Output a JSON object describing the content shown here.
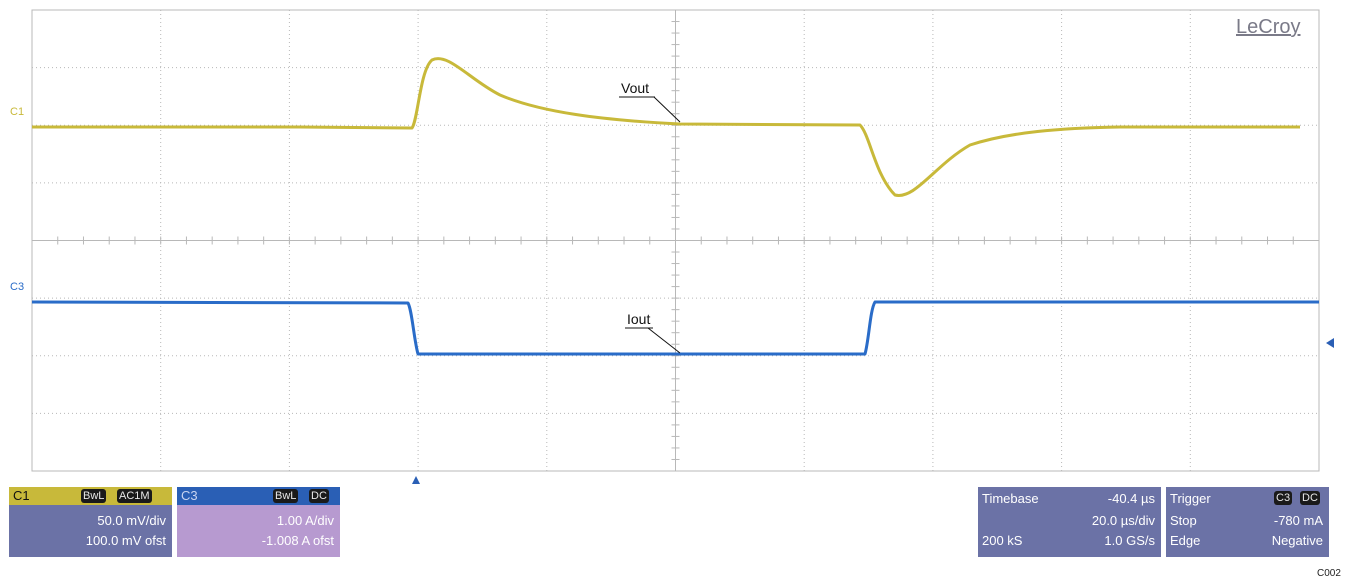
{
  "brand": "LeCroy",
  "figure_id": "C002",
  "channels": {
    "c1": {
      "marker_label": "C1",
      "trace_label": "Vout",
      "color": "#c8b93a"
    },
    "c3": {
      "marker_label": "C3",
      "trace_label": "Iout",
      "color": "#2a6cc8"
    }
  },
  "info": {
    "c1": {
      "name": "C1",
      "bw_tag": "BwL",
      "coupling_tag": "AC1M",
      "scale": "50.0 mV/div",
      "offset": "100.0 mV ofst"
    },
    "c3": {
      "name": "C3",
      "bw_tag": "BwL",
      "coupling_tag": "DC",
      "scale": "1.00 A/div",
      "offset": "-1.008 A ofst"
    },
    "timebase": {
      "title": "Timebase",
      "delay": "-40.4 µs",
      "scale": "20.0 µs/div",
      "samples": "200 kS",
      "rate": "1.0 GS/s"
    },
    "trigger": {
      "title": "Trigger",
      "source_tag": "C3",
      "coupling_tag": "DC",
      "mode": "Stop",
      "level": "-780 mA",
      "type": "Edge",
      "slope": "Negative"
    }
  },
  "colors": {
    "grid": "#b8b8b8",
    "info_bg": "#6b72a6",
    "c1_head": "#c8b93a",
    "c3_head": "#2a5fb5",
    "trigger_marker": "#2a5fb5"
  }
}
